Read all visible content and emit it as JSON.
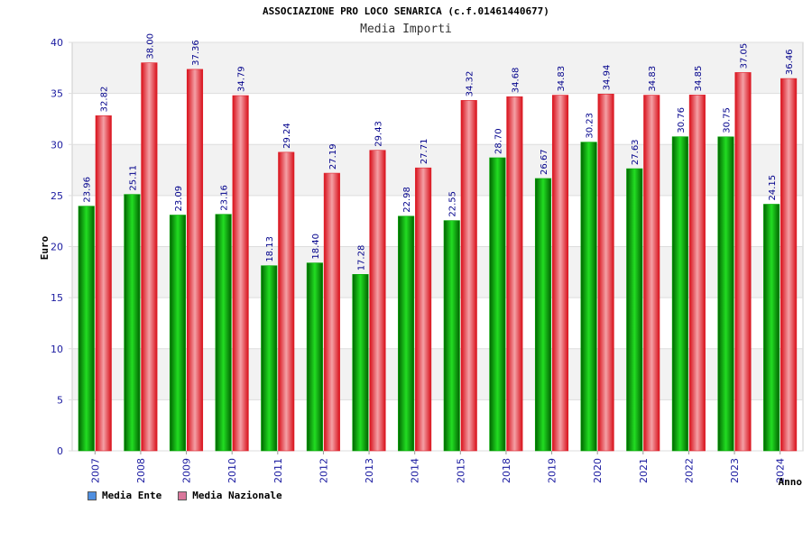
{
  "chart_data": {
    "type": "bar",
    "title": "ASSOCIAZIONE PRO LOCO SENARICA (c.f.01461440677)",
    "subtitle": "Media Importi",
    "xlabel": "Anno",
    "ylabel": "Euro",
    "ylim": [
      0,
      40
    ],
    "yticks": [
      "0",
      "5",
      "10",
      "15",
      "20",
      "25",
      "30",
      "35",
      "40"
    ],
    "categories": [
      "2007",
      "2008",
      "2009",
      "2010",
      "2011",
      "2012",
      "2013",
      "2014",
      "2015",
      "2018",
      "2019",
      "2020",
      "2021",
      "2022",
      "2023",
      "2024"
    ],
    "series": [
      {
        "name": "Media Ente",
        "color": "#00aa00",
        "values": [
          23.96,
          25.11,
          23.09,
          23.16,
          18.13,
          18.4,
          17.28,
          22.98,
          22.55,
          28.7,
          26.67,
          30.23,
          27.63,
          30.76,
          30.75,
          24.15
        ],
        "labels": [
          "23.96",
          "25.11",
          "23.09",
          "23.16",
          "18.13",
          "18.40",
          "17.28",
          "22.98",
          "22.55",
          "28.70",
          "26.67",
          "30.23",
          "27.63",
          "30.76",
          "30.75",
          "24.15"
        ]
      },
      {
        "name": "Media Nazionale",
        "color": "#e0202a",
        "values": [
          32.82,
          38.0,
          37.36,
          34.79,
          29.24,
          27.19,
          29.43,
          27.71,
          34.32,
          34.68,
          34.83,
          34.94,
          34.83,
          34.85,
          37.05,
          36.46
        ],
        "labels": [
          "32.82",
          "38.00",
          "37.36",
          "34.79",
          "29.24",
          "27.19",
          "29.43",
          "27.71",
          "34.32",
          "34.68",
          "34.83",
          "34.94",
          "34.83",
          "34.85",
          "37.05",
          "36.46"
        ]
      }
    ],
    "legend": [
      {
        "label": "Media Ente",
        "color": "#4f8fe0"
      },
      {
        "label": "Media Nazionale",
        "color": "#d9779b"
      }
    ],
    "legend_position": "bottom-left",
    "grid": true
  }
}
